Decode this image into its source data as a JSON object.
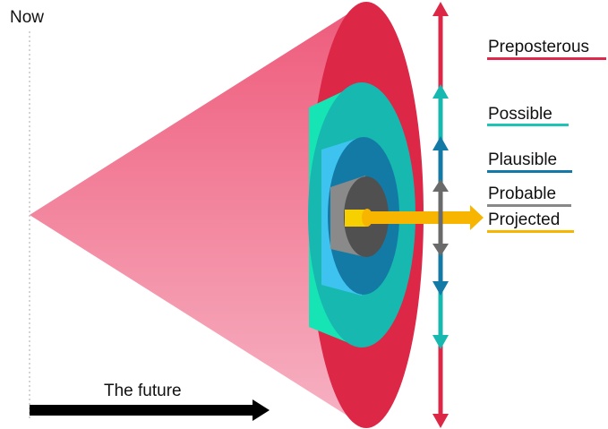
{
  "labels": {
    "now": "Now",
    "the_future": "The future",
    "cones": [
      {
        "key": "preposterous",
        "text": "Preposterous",
        "color": "#e0284e"
      },
      {
        "key": "possible",
        "text": "Possible",
        "color": "#1fc4b4"
      },
      {
        "key": "plausible",
        "text": "Plausible",
        "color": "#1379a8"
      },
      {
        "key": "probable",
        "text": "Probable",
        "color": "#888888"
      },
      {
        "key": "projected",
        "text": "Projected",
        "color": "#f7b500"
      }
    ]
  },
  "colors": {
    "cone_gradient_top": "#ee5a7a",
    "cone_gradient_bottom": "#f7b3c4",
    "preposterous": "#dc2747",
    "possible_light": "#17e4b4",
    "possible": "#16b8b0",
    "plausible_light": "#3ec3f0",
    "plausible": "#137aa6",
    "probable_light": "#8a8a8a",
    "probable": "#505050",
    "projected": "#f7b500",
    "future_arrow": "#000000"
  }
}
